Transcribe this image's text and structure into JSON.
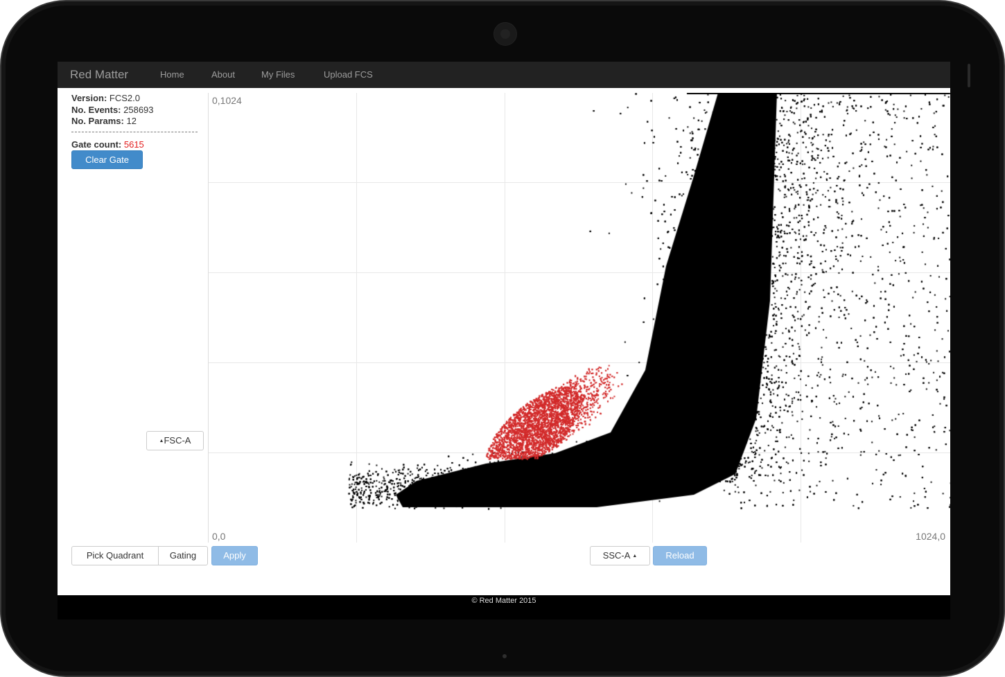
{
  "app": {
    "brand": "Red Matter"
  },
  "nav": {
    "items": [
      "Home",
      "About",
      "My Files",
      "Upload FCS"
    ]
  },
  "info": {
    "version_label": "Version:",
    "version": "FCS2.0",
    "events_label": "No. Events:",
    "events": "258693",
    "params_label": "No. Params:",
    "params": "12"
  },
  "gate": {
    "label": "Gate count:",
    "count": "5615",
    "clear_label": "Clear Gate"
  },
  "plot": {
    "top_left_label": "0,1024",
    "bottom_left_label": "0,0",
    "bottom_right_label": "1024,0",
    "y_axis_select": "FSC-A",
    "x_axis_select": "SSC-A",
    "ungated_color": "#000000",
    "gated_color": "#d22a2a"
  },
  "controls": {
    "pick_quadrant": "Pick Quadrant",
    "gating": "Gating",
    "apply": "Apply",
    "reload": "Reload"
  },
  "footer": {
    "text": "© Red Matter 2015"
  }
}
